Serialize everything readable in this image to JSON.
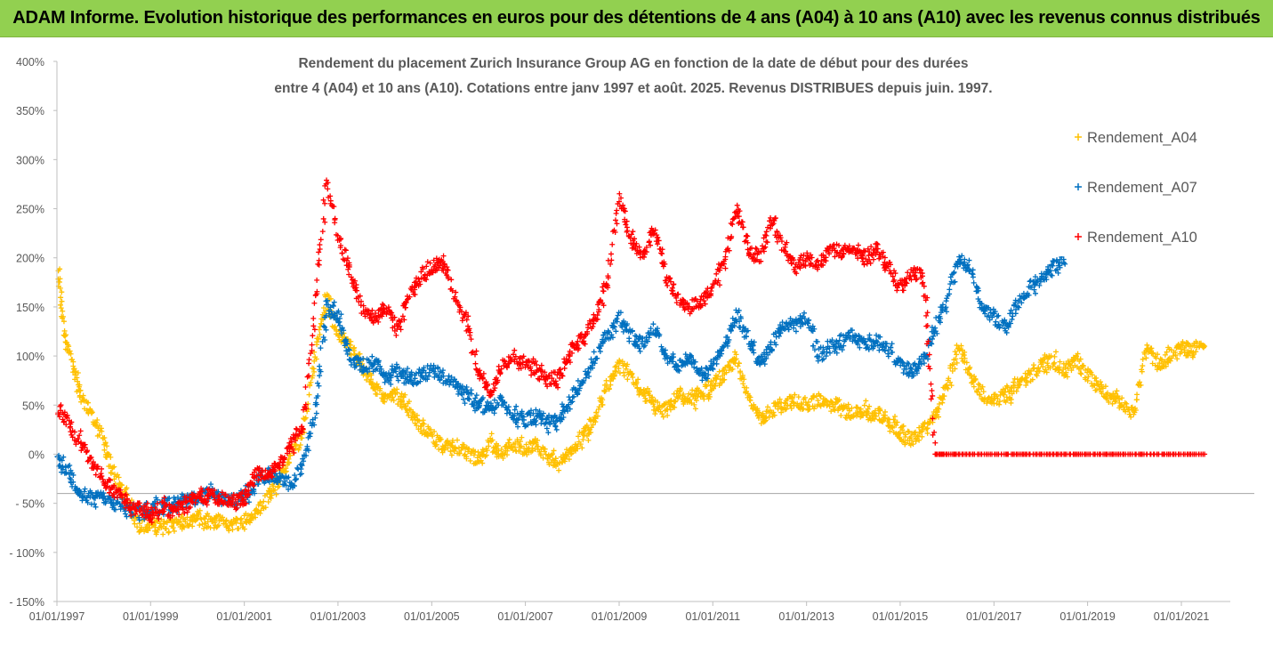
{
  "banner": {
    "title": "ADAM Informe. Evolution historique des performances en euros pour des détentions de 4 ans (A04) à 10 ans (A10) avec les revenus connus distribués"
  },
  "chart_data": {
    "type": "scatter",
    "title_line1": "Rendement du placement Zurich Insurance Group AG en fonction de la date de début pour des durées",
    "title_line2": "entre 4 (A04) et 10 ans (A10). Cotations entre janv 1997 et août. 2025. Revenus DISTRIBUES depuis juin. 1997.",
    "x_ticks": [
      "01/01/1997",
      "01/01/1999",
      "01/01/2001",
      "01/01/2003",
      "01/01/2005",
      "01/01/2007",
      "01/01/2009",
      "01/01/2011",
      "01/01/2013",
      "01/01/2015",
      "01/01/2017",
      "01/01/2019",
      "01/01/2021"
    ],
    "x_range": [
      "1997-01-01",
      "2021-08-01"
    ],
    "y_ticks": [
      "400%",
      "350%",
      "300%",
      "250%",
      "200%",
      "150%",
      "100%",
      "50%",
      "0%",
      "-50%",
      "-100%",
      "-150%"
    ],
    "y_range": [
      -150,
      400
    ],
    "legend_position": "top-right",
    "series": [
      {
        "name": "Rendement_A04",
        "color": "#ffc000",
        "points": [
          [
            "1997-01-01",
            190
          ],
          [
            "1997-03-01",
            120
          ],
          [
            "1997-05-01",
            90
          ],
          [
            "1997-07-01",
            60
          ],
          [
            "1997-10-01",
            40
          ],
          [
            "1998-01-01",
            10
          ],
          [
            "1998-04-01",
            -25
          ],
          [
            "1998-07-01",
            -45
          ],
          [
            "1998-10-01",
            -75
          ],
          [
            "1999-01-01",
            -70
          ],
          [
            "1999-04-01",
            -75
          ],
          [
            "1999-07-01",
            -72
          ],
          [
            "1999-10-01",
            -68
          ],
          [
            "2000-01-01",
            -65
          ],
          [
            "2000-04-01",
            -70
          ],
          [
            "2000-07-01",
            -66
          ],
          [
            "2000-10-01",
            -72
          ],
          [
            "2001-01-01",
            -68
          ],
          [
            "2001-04-01",
            -60
          ],
          [
            "2001-07-01",
            -45
          ],
          [
            "2001-10-01",
            -25
          ],
          [
            "2002-01-01",
            0
          ],
          [
            "2002-04-01",
            20
          ],
          [
            "2002-07-01",
            100
          ],
          [
            "2002-10-01",
            160
          ],
          [
            "2003-01-01",
            120
          ],
          [
            "2003-04-01",
            110
          ],
          [
            "2003-07-01",
            90
          ],
          [
            "2003-10-01",
            70
          ],
          [
            "2004-01-01",
            55
          ],
          [
            "2004-04-01",
            60
          ],
          [
            "2004-07-01",
            45
          ],
          [
            "2004-10-01",
            30
          ],
          [
            "2005-01-01",
            20
          ],
          [
            "2005-04-01",
            5
          ],
          [
            "2005-07-01",
            10
          ],
          [
            "2005-10-01",
            0
          ],
          [
            "2006-01-01",
            -5
          ],
          [
            "2006-04-01",
            10
          ],
          [
            "2006-07-01",
            0
          ],
          [
            "2006-10-01",
            10
          ],
          [
            "2007-01-01",
            5
          ],
          [
            "2007-04-01",
            10
          ],
          [
            "2007-07-01",
            -5
          ],
          [
            "2007-10-01",
            -10
          ],
          [
            "2008-01-01",
            5
          ],
          [
            "2008-04-01",
            20
          ],
          [
            "2008-07-01",
            40
          ],
          [
            "2008-10-01",
            70
          ],
          [
            "2009-01-01",
            90
          ],
          [
            "2009-04-01",
            80
          ],
          [
            "2009-07-01",
            60
          ],
          [
            "2009-10-01",
            50
          ],
          [
            "2010-01-01",
            45
          ],
          [
            "2010-04-01",
            60
          ],
          [
            "2010-07-01",
            55
          ],
          [
            "2010-10-01",
            60
          ],
          [
            "2011-01-01",
            70
          ],
          [
            "2011-04-01",
            80
          ],
          [
            "2011-07-01",
            100
          ],
          [
            "2011-10-01",
            60
          ],
          [
            "2012-01-01",
            35
          ],
          [
            "2012-04-01",
            45
          ],
          [
            "2012-07-01",
            50
          ],
          [
            "2012-10-01",
            55
          ],
          [
            "2013-01-01",
            50
          ],
          [
            "2013-04-01",
            55
          ],
          [
            "2013-07-01",
            55
          ],
          [
            "2013-10-01",
            45
          ],
          [
            "2014-01-01",
            40
          ],
          [
            "2014-04-01",
            45
          ],
          [
            "2014-07-01",
            40
          ],
          [
            "2014-10-01",
            35
          ],
          [
            "2015-01-01",
            20
          ],
          [
            "2015-04-01",
            15
          ],
          [
            "2015-07-01",
            25
          ],
          [
            "2015-10-01",
            40
          ],
          [
            "2016-01-01",
            70
          ],
          [
            "2016-04-01",
            110
          ],
          [
            "2016-07-01",
            80
          ],
          [
            "2016-10-01",
            60
          ],
          [
            "2017-01-01",
            55
          ],
          [
            "2017-04-01",
            60
          ],
          [
            "2017-07-01",
            70
          ],
          [
            "2017-10-01",
            80
          ],
          [
            "2018-01-01",
            90
          ],
          [
            "2018-04-01",
            95
          ],
          [
            "2018-07-01",
            85
          ],
          [
            "2018-10-01",
            95
          ],
          [
            "2019-01-01",
            80
          ],
          [
            "2019-04-01",
            70
          ],
          [
            "2019-07-01",
            60
          ],
          [
            "2019-10-01",
            50
          ],
          [
            "2020-01-01",
            40
          ],
          [
            "2020-04-01",
            110
          ],
          [
            "2020-07-01",
            90
          ],
          [
            "2020-10-01",
            100
          ],
          [
            "2021-01-01",
            110
          ],
          [
            "2021-04-01",
            105
          ],
          [
            "2021-07-01",
            110
          ]
        ]
      },
      {
        "name": "Rendement_A07",
        "color": "#0070c0",
        "points": [
          [
            "1997-01-01",
            -5
          ],
          [
            "1997-04-01",
            -20
          ],
          [
            "1997-07-01",
            -40
          ],
          [
            "1997-10-01",
            -45
          ],
          [
            "1998-01-01",
            -45
          ],
          [
            "1998-04-01",
            -50
          ],
          [
            "1998-07-01",
            -55
          ],
          [
            "1998-10-01",
            -60
          ],
          [
            "1999-01-01",
            -55
          ],
          [
            "1999-04-01",
            -52
          ],
          [
            "1999-07-01",
            -50
          ],
          [
            "1999-10-01",
            -48
          ],
          [
            "2000-01-01",
            -45
          ],
          [
            "2000-04-01",
            -40
          ],
          [
            "2000-07-01",
            -45
          ],
          [
            "2000-10-01",
            -48
          ],
          [
            "2001-01-01",
            -40
          ],
          [
            "2001-04-01",
            -30
          ],
          [
            "2001-07-01",
            -20
          ],
          [
            "2001-10-01",
            -25
          ],
          [
            "2002-01-01",
            -30
          ],
          [
            "2002-04-01",
            -10
          ],
          [
            "2002-07-01",
            40
          ],
          [
            "2002-10-01",
            150
          ],
          [
            "2003-01-01",
            140
          ],
          [
            "2003-04-01",
            100
          ],
          [
            "2003-07-01",
            90
          ],
          [
            "2003-10-01",
            95
          ],
          [
            "2004-01-01",
            80
          ],
          [
            "2004-04-01",
            85
          ],
          [
            "2004-07-01",
            75
          ],
          [
            "2004-10-01",
            80
          ],
          [
            "2005-01-01",
            85
          ],
          [
            "2005-04-01",
            80
          ],
          [
            "2005-07-01",
            70
          ],
          [
            "2005-10-01",
            60
          ],
          [
            "2006-01-01",
            50
          ],
          [
            "2006-04-01",
            45
          ],
          [
            "2006-07-01",
            55
          ],
          [
            "2006-10-01",
            40
          ],
          [
            "2007-01-01",
            35
          ],
          [
            "2007-04-01",
            40
          ],
          [
            "2007-07-01",
            30
          ],
          [
            "2007-10-01",
            40
          ],
          [
            "2008-01-01",
            60
          ],
          [
            "2008-04-01",
            80
          ],
          [
            "2008-07-01",
            100
          ],
          [
            "2008-10-01",
            120
          ],
          [
            "2009-01-01",
            140
          ],
          [
            "2009-04-01",
            120
          ],
          [
            "2009-07-01",
            110
          ],
          [
            "2009-10-01",
            130
          ],
          [
            "2010-01-01",
            100
          ],
          [
            "2010-04-01",
            90
          ],
          [
            "2010-07-01",
            100
          ],
          [
            "2010-10-01",
            80
          ],
          [
            "2011-01-01",
            90
          ],
          [
            "2011-04-01",
            110
          ],
          [
            "2011-07-01",
            140
          ],
          [
            "2011-10-01",
            120
          ],
          [
            "2012-01-01",
            90
          ],
          [
            "2012-04-01",
            110
          ],
          [
            "2012-07-01",
            130
          ],
          [
            "2012-10-01",
            130
          ],
          [
            "2013-01-01",
            140
          ],
          [
            "2013-04-01",
            100
          ],
          [
            "2013-07-01",
            110
          ],
          [
            "2013-10-01",
            115
          ],
          [
            "2014-01-01",
            120
          ],
          [
            "2014-04-01",
            110
          ],
          [
            "2014-07-01",
            115
          ],
          [
            "2014-10-01",
            105
          ],
          [
            "2015-01-01",
            90
          ],
          [
            "2015-04-01",
            85
          ],
          [
            "2015-07-01",
            95
          ],
          [
            "2015-10-01",
            130
          ],
          [
            "2016-01-01",
            160
          ],
          [
            "2016-04-01",
            200
          ],
          [
            "2016-07-01",
            190
          ],
          [
            "2016-10-01",
            150
          ],
          [
            "2017-01-01",
            140
          ],
          [
            "2017-04-01",
            130
          ],
          [
            "2017-07-01",
            150
          ],
          [
            "2017-10-01",
            170
          ],
          [
            "2018-01-01",
            180
          ],
          [
            "2018-04-01",
            190
          ],
          [
            "2018-07-01",
            195
          ]
        ]
      },
      {
        "name": "Rendement_A10",
        "color": "#ff0000",
        "points": [
          [
            "1997-01-01",
            50
          ],
          [
            "1997-04-01",
            30
          ],
          [
            "1997-07-01",
            10
          ],
          [
            "1997-10-01",
            -10
          ],
          [
            "1998-01-01",
            -25
          ],
          [
            "1998-04-01",
            -40
          ],
          [
            "1998-07-01",
            -50
          ],
          [
            "1998-10-01",
            -55
          ],
          [
            "1999-01-01",
            -60
          ],
          [
            "1999-04-01",
            -55
          ],
          [
            "1999-07-01",
            -58
          ],
          [
            "1999-10-01",
            -50
          ],
          [
            "2000-01-01",
            -45
          ],
          [
            "2000-04-01",
            -40
          ],
          [
            "2000-07-01",
            -45
          ],
          [
            "2000-10-01",
            -50
          ],
          [
            "2001-01-01",
            -45
          ],
          [
            "2001-04-01",
            -20
          ],
          [
            "2001-07-01",
            -20
          ],
          [
            "2001-10-01",
            -10
          ],
          [
            "2002-01-01",
            10
          ],
          [
            "2002-04-01",
            30
          ],
          [
            "2002-07-01",
            150
          ],
          [
            "2002-10-01",
            280
          ],
          [
            "2003-01-01",
            220
          ],
          [
            "2003-04-01",
            190
          ],
          [
            "2003-07-01",
            150
          ],
          [
            "2003-10-01",
            140
          ],
          [
            "2004-01-01",
            150
          ],
          [
            "2004-04-01",
            130
          ],
          [
            "2004-07-01",
            160
          ],
          [
            "2004-10-01",
            180
          ],
          [
            "2005-01-01",
            190
          ],
          [
            "2005-04-01",
            195
          ],
          [
            "2005-07-01",
            160
          ],
          [
            "2005-10-01",
            130
          ],
          [
            "2006-01-01",
            80
          ],
          [
            "2006-04-01",
            60
          ],
          [
            "2006-07-01",
            90
          ],
          [
            "2006-10-01",
            100
          ],
          [
            "2007-01-01",
            90
          ],
          [
            "2007-04-01",
            85
          ],
          [
            "2007-07-01",
            75
          ],
          [
            "2007-10-01",
            80
          ],
          [
            "2008-01-01",
            110
          ],
          [
            "2008-04-01",
            120
          ],
          [
            "2008-07-01",
            140
          ],
          [
            "2008-10-01",
            180
          ],
          [
            "2009-01-01",
            260
          ],
          [
            "2009-04-01",
            220
          ],
          [
            "2009-07-01",
            200
          ],
          [
            "2009-10-01",
            230
          ],
          [
            "2010-01-01",
            180
          ],
          [
            "2010-04-01",
            160
          ],
          [
            "2010-07-01",
            150
          ],
          [
            "2010-10-01",
            155
          ],
          [
            "2011-01-01",
            170
          ],
          [
            "2011-04-01",
            200
          ],
          [
            "2011-07-01",
            250
          ],
          [
            "2011-10-01",
            210
          ],
          [
            "2012-01-01",
            200
          ],
          [
            "2012-04-01",
            240
          ],
          [
            "2012-07-01",
            210
          ],
          [
            "2012-10-01",
            190
          ],
          [
            "2013-01-01",
            200
          ],
          [
            "2013-04-01",
            195
          ],
          [
            "2013-07-01",
            210
          ],
          [
            "2013-10-01",
            205
          ],
          [
            "2014-01-01",
            210
          ],
          [
            "2014-04-01",
            200
          ],
          [
            "2014-07-01",
            210
          ],
          [
            "2014-10-01",
            190
          ],
          [
            "2015-01-01",
            170
          ],
          [
            "2015-04-01",
            185
          ],
          [
            "2015-07-01",
            180
          ],
          [
            "2015-10-01",
            0
          ],
          [
            "2016-01-01",
            0
          ],
          [
            "2016-07-01",
            0
          ],
          [
            "2017-01-01",
            0
          ],
          [
            "2017-07-01",
            0
          ],
          [
            "2018-01-01",
            0
          ],
          [
            "2018-07-01",
            0
          ],
          [
            "2019-01-01",
            0
          ],
          [
            "2019-07-01",
            0
          ],
          [
            "2020-01-01",
            0
          ],
          [
            "2020-07-01",
            0
          ],
          [
            "2021-01-01",
            0
          ],
          [
            "2021-07-01",
            0
          ]
        ]
      }
    ]
  }
}
